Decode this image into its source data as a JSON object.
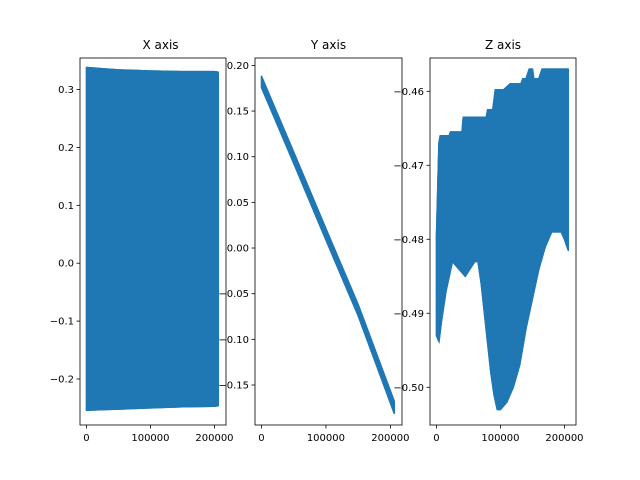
{
  "chart_data": [
    {
      "type": "line",
      "title": "X axis",
      "color": "#1f77b4",
      "xlim": [
        -10000,
        218000
      ],
      "ylim": [
        -0.2795,
        0.3545
      ],
      "xticks": [
        0,
        100000,
        200000
      ],
      "xtick_labels": [
        "0",
        "100000",
        "200000"
      ],
      "yticks": [
        -0.2,
        -0.1,
        0.0,
        0.1,
        0.2,
        0.3
      ],
      "ytick_labels": [
        "−0.2",
        "−0.1",
        "0.0",
        "0.1",
        "0.2",
        "0.3"
      ],
      "series": [
        {
          "name": "upper envelope",
          "x": [
            0,
            25000,
            50000,
            100000,
            150000,
            200000,
            206000
          ],
          "values": [
            0.338,
            0.336,
            0.334,
            0.332,
            0.331,
            0.331,
            0.33
          ]
        },
        {
          "name": "lower envelope",
          "x": [
            0,
            25000,
            50000,
            100000,
            150000,
            200000,
            206000
          ],
          "values": [
            -0.254,
            -0.253,
            -0.252,
            -0.25,
            -0.248,
            -0.247,
            -0.246
          ]
        }
      ]
    },
    {
      "type": "line",
      "title": "Y axis",
      "color": "#1f77b4",
      "xlim": [
        -10000,
        218000
      ],
      "ylim": [
        -0.1938,
        0.2081
      ],
      "xticks": [
        0,
        100000,
        200000
      ],
      "xtick_labels": [
        "0",
        "100000",
        "200000"
      ],
      "yticks": [
        -0.15,
        -0.1,
        -0.05,
        0.0,
        0.05,
        0.1,
        0.15,
        0.2
      ],
      "ytick_labels": [
        "−0.15",
        "−0.10",
        "−0.05",
        "0.00",
        "0.05",
        "0.10",
        "0.15",
        "0.20"
      ],
      "series": [
        {
          "name": "upper envelope",
          "x": [
            0,
            50000,
            100000,
            150000,
            206000
          ],
          "values": [
            0.188,
            0.105,
            0.021,
            -0.062,
            -0.168
          ]
        },
        {
          "name": "lower envelope",
          "x": [
            0,
            50000,
            100000,
            150000,
            206000
          ],
          "values": [
            0.176,
            0.093,
            0.009,
            -0.074,
            -0.181
          ]
        }
      ]
    },
    {
      "type": "line",
      "title": "Z axis",
      "color": "#1f77b4",
      "xlim": [
        -10000,
        218000
      ],
      "ylim": [
        -0.5051,
        -0.4555
      ],
      "xticks": [
        0,
        100000,
        200000
      ],
      "xtick_labels": [
        "0",
        "100000",
        "200000"
      ],
      "yticks": [
        -0.5,
        -0.49,
        -0.48,
        -0.47,
        -0.46
      ],
      "ytick_labels": [
        "−0.50",
        "−0.49",
        "−0.48",
        "−0.47",
        "−0.46"
      ],
      "series": [
        {
          "name": "upper envelope",
          "x": [
            0,
            4000,
            6000,
            20000,
            22000,
            40000,
            42000,
            60000,
            62000,
            78000,
            80000,
            88000,
            92000,
            100000,
            105000,
            115000,
            118000,
            132000,
            135000,
            140000,
            145000,
            150000,
            152000,
            160000,
            165000,
            206000
          ],
          "values": [
            -0.48,
            -0.467,
            -0.466,
            -0.466,
            -0.4655,
            -0.4655,
            -0.4635,
            -0.4635,
            -0.4635,
            -0.4635,
            -0.4625,
            -0.4625,
            -0.4598,
            -0.4598,
            -0.4598,
            -0.459,
            -0.459,
            -0.459,
            -0.4583,
            -0.4583,
            -0.457,
            -0.457,
            -0.4583,
            -0.4583,
            -0.457,
            -0.457
          ]
        },
        {
          "name": "lower envelope",
          "x": [
            0,
            4000,
            8000,
            15000,
            25000,
            35000,
            45000,
            60000,
            65000,
            70000,
            75000,
            80000,
            85000,
            90000,
            95000,
            100000,
            110000,
            120000,
            130000,
            140000,
            150000,
            160000,
            170000,
            180000,
            188000,
            195000,
            200000,
            206000
          ],
          "values": [
            -0.493,
            -0.4938,
            -0.491,
            -0.487,
            -0.483,
            -0.484,
            -0.485,
            -0.483,
            -0.483,
            -0.486,
            -0.49,
            -0.494,
            -0.498,
            -0.501,
            -0.503,
            -0.503,
            -0.502,
            -0.5,
            -0.497,
            -0.492,
            -0.488,
            -0.484,
            -0.481,
            -0.479,
            -0.479,
            -0.479,
            -0.48,
            -0.4815
          ]
        }
      ]
    }
  ]
}
